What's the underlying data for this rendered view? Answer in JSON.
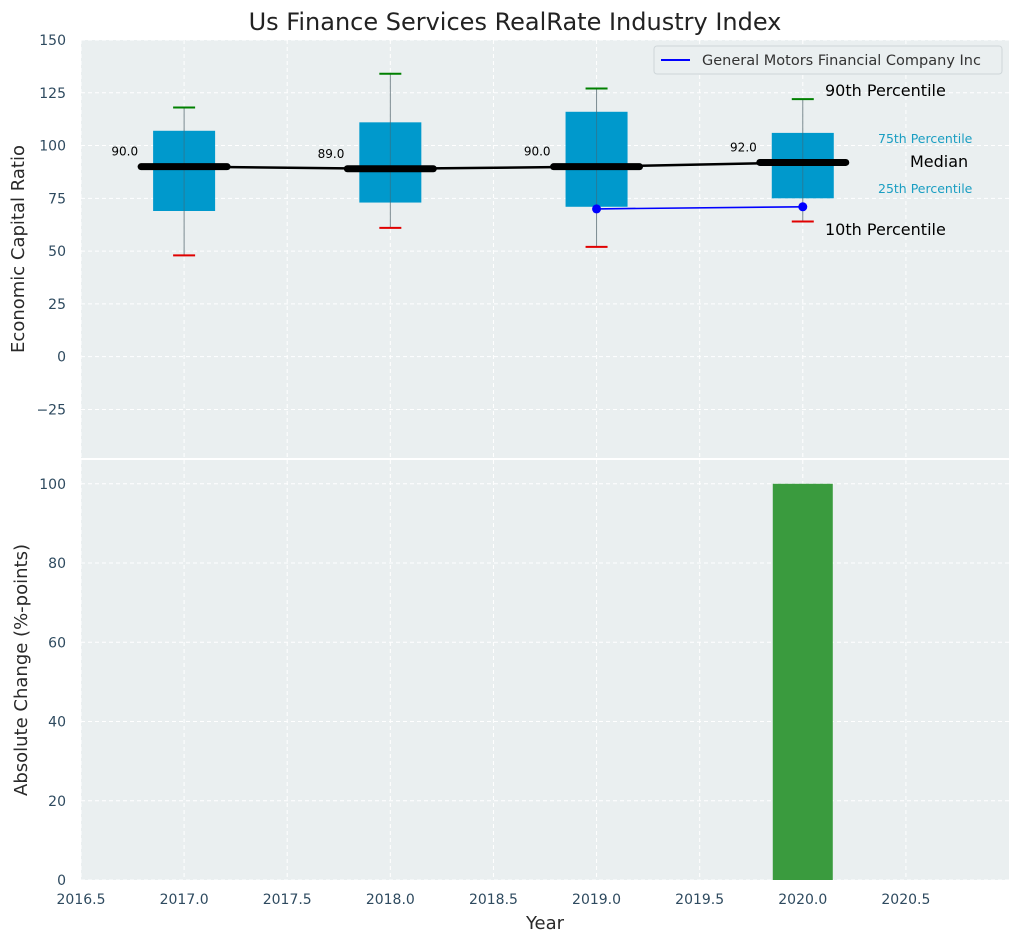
{
  "chart_data": [
    {
      "type": "box",
      "title": "Us Finance Services RealRate Industry Index",
      "ylabel": "Economic Capital Ratio",
      "xlim": [
        2016.5,
        2021.0
      ],
      "ylim": [
        -48,
        150
      ],
      "yticks": [
        -25,
        0,
        25,
        50,
        75,
        100,
        125,
        150
      ],
      "ytick_labels": [
        "−25",
        "0",
        "25",
        "50",
        "75",
        "100",
        "125",
        "150"
      ],
      "grid": true,
      "legend_position": "top-right",
      "boxes": [
        {
          "x": 2017.0,
          "p10": 48,
          "p25": 69,
          "median": 90,
          "p75": 107,
          "p90": 118,
          "median_label": "90.0"
        },
        {
          "x": 2018.0,
          "p10": 61,
          "p25": 73,
          "median": 89,
          "p75": 111,
          "p90": 134,
          "median_label": "89.0"
        },
        {
          "x": 2019.0,
          "p10": 52,
          "p25": 71,
          "median": 90,
          "p75": 116,
          "p90": 127,
          "median_label": "90.0"
        },
        {
          "x": 2020.0,
          "p10": 64,
          "p25": 75,
          "median": 92,
          "p75": 106,
          "p90": 122,
          "median_label": "92.0"
        }
      ],
      "median_line": {
        "x": [
          2017.0,
          2018.0,
          2019.0,
          2020.0
        ],
        "y": [
          90,
          89,
          90,
          92
        ]
      },
      "series": [
        {
          "name": "General Motors Financial Company Inc",
          "color": "#0000ff",
          "x": [
            2019.0,
            2020.0
          ],
          "y": [
            70,
            71
          ]
        }
      ],
      "annotations": {
        "p90": "90th Percentile",
        "p75": "75th Percentile",
        "median": "Median",
        "p25": "25th Percentile",
        "p10": "10th Percentile"
      },
      "colors": {
        "box": "#0099cc",
        "median": "#000000",
        "p90_cap": "#008000",
        "p10_cap": "#e00000",
        "plot_bg": "#eaeff0"
      }
    },
    {
      "type": "bar",
      "xlabel": "Year",
      "ylabel": "Absolute Change (%-points)",
      "xlim": [
        2016.5,
        2021.0
      ],
      "ylim": [
        0,
        106
      ],
      "xticks": [
        2016.5,
        2017.0,
        2017.5,
        2018.0,
        2018.5,
        2019.0,
        2019.5,
        2020.0,
        2020.5
      ],
      "xtick_labels": [
        "2016.5",
        "2017.0",
        "2017.5",
        "2018.0",
        "2018.5",
        "2019.0",
        "2019.5",
        "2020.0",
        "2020.5"
      ],
      "yticks": [
        0,
        20,
        40,
        60,
        80,
        100
      ],
      "ytick_labels": [
        "0",
        "20",
        "40",
        "60",
        "80",
        "100"
      ],
      "grid": true,
      "bars": [
        {
          "x": 2020.0,
          "value": 100
        }
      ],
      "colors": {
        "bar": "#3a9b3e",
        "plot_bg": "#eaeff0"
      }
    }
  ]
}
